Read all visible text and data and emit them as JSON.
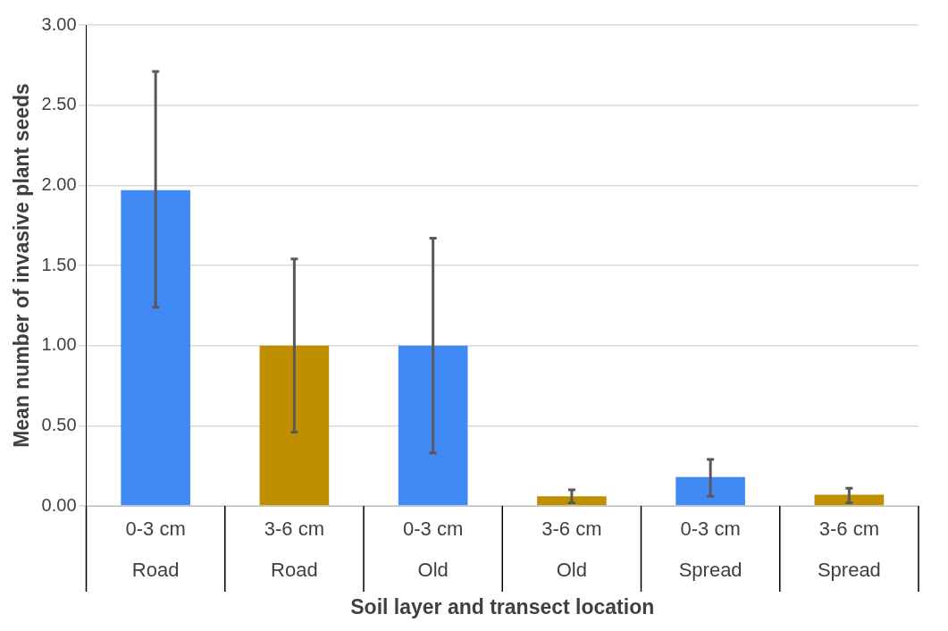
{
  "chart_data": {
    "type": "bar",
    "xlabel": "Soil layer and transect location",
    "ylabel": "Mean number of invasive plant seeds",
    "categories": [
      "0-3 cm\nRoad",
      "3-6 cm\nRoad",
      "0-3 cm\nOld",
      "3-6 cm\nOld",
      "0-3 cm\nSpread",
      "3-6 cm\nSpread"
    ],
    "values": [
      1.97,
      1.0,
      1.0,
      0.06,
      0.18,
      0.07
    ],
    "colors": [
      "#4189f5",
      "#bf8f00",
      "#4189f5",
      "#bf8f00",
      "#4189f5",
      "#bf8f00"
    ],
    "errors": [
      [
        1.24,
        2.71
      ],
      [
        0.46,
        1.54
      ],
      [
        0.33,
        1.67
      ],
      [
        0.02,
        0.1
      ],
      [
        0.06,
        0.29
      ],
      [
        0.02,
        0.11
      ]
    ],
    "ylim": [
      0,
      3
    ],
    "yticks": [
      {
        "value": 0,
        "label": "0.00"
      },
      {
        "value": 0.5,
        "label": "0.50"
      },
      {
        "value": 1,
        "label": "1.00"
      },
      {
        "value": 1.5,
        "label": "1.50"
      },
      {
        "value": 2,
        "label": "2.00"
      },
      {
        "value": 2.5,
        "label": "2.50"
      },
      {
        "value": 3,
        "label": "3.00"
      }
    ],
    "grid": "y",
    "legend": false
  }
}
